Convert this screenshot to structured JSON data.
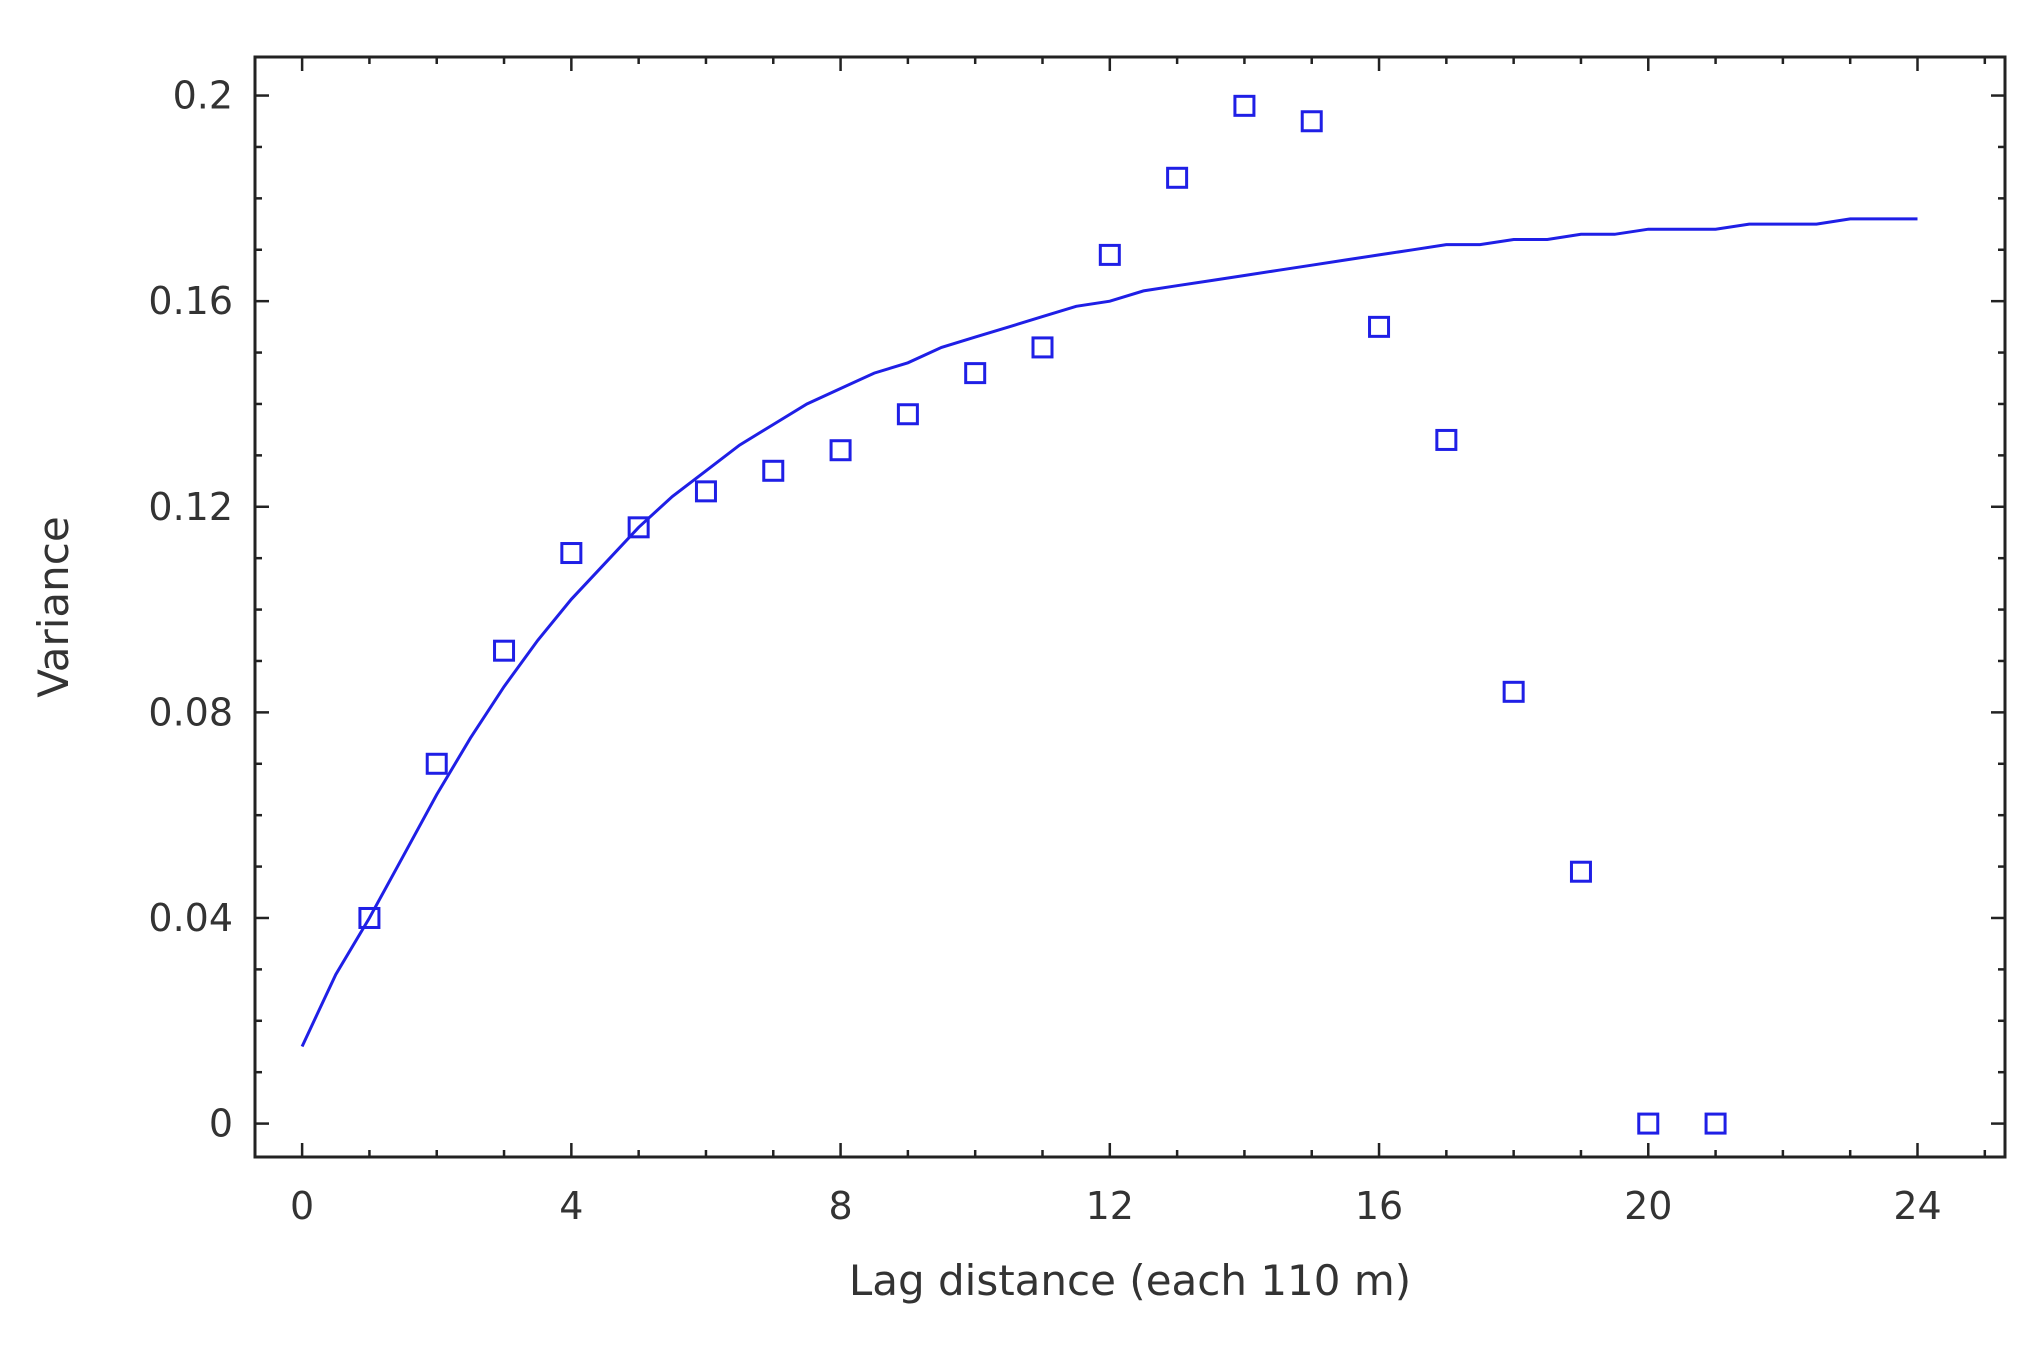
{
  "chart_data": {
    "type": "scatter",
    "xlabel": "Lag distance (each 110 m)",
    "ylabel": "Variance",
    "xlim": [
      -0.7,
      25.3
    ],
    "ylim": [
      -0.0065,
      0.2075
    ],
    "xticks": [
      0,
      4,
      8,
      12,
      16,
      20,
      24
    ],
    "yticks": [
      0,
      0.04,
      0.08,
      0.12,
      0.16,
      0.2
    ],
    "xtick_labels": [
      "0",
      "4",
      "8",
      "12",
      "16",
      "20",
      "24"
    ],
    "ytick_labels": [
      "0",
      "0.04",
      "0.08",
      "0.12",
      "0.16",
      "0.2"
    ],
    "grid": false,
    "legend": "none",
    "series": [
      {
        "kind": "points",
        "marker": "open-square",
        "x": [
          1,
          2,
          3,
          4,
          5,
          6,
          7,
          8,
          9,
          10,
          11,
          12,
          13,
          14,
          15,
          16,
          17,
          18,
          19,
          20,
          21
        ],
        "y": [
          0.04,
          0.07,
          0.092,
          0.111,
          0.116,
          0.123,
          0.127,
          0.131,
          0.138,
          0.146,
          0.151,
          0.169,
          0.184,
          0.198,
          0.195,
          0.155,
          0.133,
          0.084,
          0.049,
          0.0,
          0.0
        ]
      },
      {
        "kind": "fitted-curve",
        "x": [
          0,
          0.25,
          0.5,
          1,
          1.5,
          2,
          2.5,
          3,
          3.5,
          4,
          4.5,
          5,
          5.5,
          6,
          6.5,
          7,
          7.5,
          8,
          8.5,
          9,
          9.5,
          10,
          10.5,
          11,
          11.5,
          12,
          12.5,
          13,
          13.5,
          14,
          14.5,
          15,
          15.5,
          16,
          16.5,
          17,
          17.5,
          18,
          18.5,
          19,
          19.5,
          20,
          20.5,
          21,
          21.5,
          22,
          22.5,
          23,
          23.5,
          24
        ],
        "y": [
          0.015,
          0.022,
          0.029,
          0.04,
          0.052,
          0.064,
          0.075,
          0.085,
          0.094,
          0.102,
          0.109,
          0.116,
          0.122,
          0.127,
          0.132,
          0.136,
          0.14,
          0.143,
          0.146,
          0.148,
          0.151,
          0.153,
          0.155,
          0.157,
          0.159,
          0.16,
          0.162,
          0.163,
          0.164,
          0.165,
          0.166,
          0.167,
          0.168,
          0.169,
          0.17,
          0.171,
          0.171,
          0.172,
          0.172,
          0.173,
          0.173,
          0.174,
          0.174,
          0.174,
          0.175,
          0.175,
          0.175,
          0.176,
          0.176,
          0.176
        ]
      }
    ]
  },
  "colors": {
    "series": "#1f1fe6",
    "axis": "#222222",
    "text": "#333333"
  }
}
